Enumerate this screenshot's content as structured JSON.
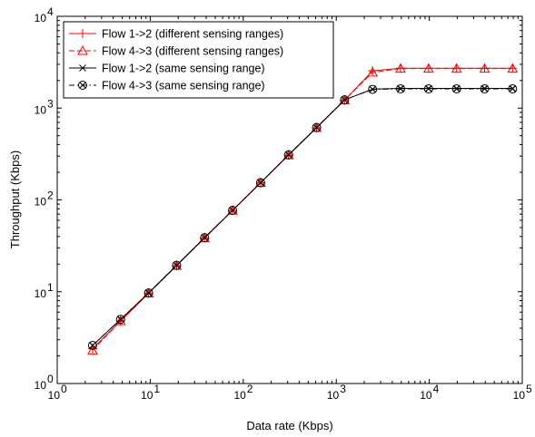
{
  "chart_data": {
    "type": "line",
    "title": "",
    "xlabel": "Data rate (Kbps)",
    "ylabel": "Throughput (Kbps)",
    "xscale": "log",
    "yscale": "log",
    "xlim": [
      1,
      100000
    ],
    "ylim": [
      1,
      10000
    ],
    "x_ticks": [
      {
        "value": 1,
        "base": "10",
        "exp": "0"
      },
      {
        "value": 10,
        "base": "10",
        "exp": "1"
      },
      {
        "value": 100,
        "base": "10",
        "exp": "2"
      },
      {
        "value": 1000,
        "base": "10",
        "exp": "3"
      },
      {
        "value": 10000,
        "base": "10",
        "exp": "4"
      },
      {
        "value": 100000,
        "base": "10",
        "exp": "5"
      }
    ],
    "y_ticks": [
      {
        "value": 1,
        "base": "10",
        "exp": "0"
      },
      {
        "value": 10,
        "base": "10",
        "exp": "1"
      },
      {
        "value": 100,
        "base": "10",
        "exp": "2"
      },
      {
        "value": 1000,
        "base": "10",
        "exp": "3"
      },
      {
        "value": 10000,
        "base": "10",
        "exp": "4"
      }
    ],
    "grid": false,
    "legend_position": "top-left",
    "x": [
      2.4,
      4.8,
      9.6,
      19.2,
      38.4,
      76.8,
      153.6,
      307.2,
      614.4,
      1228.8,
      2457.6,
      4915.2,
      9830.4,
      19660.8,
      39321.6,
      78643.2
    ],
    "series": [
      {
        "name": "Flow 1->2 (different sensing ranges)",
        "color": "#ff0000",
        "dash": "solid",
        "marker": "plus",
        "values": [
          2.4,
          4.8,
          9.6,
          19.2,
          38.4,
          76.8,
          153.6,
          307,
          610,
          1220,
          2550,
          2720,
          2720,
          2720,
          2720,
          2720
        ]
      },
      {
        "name": "Flow 4->3 (different sensing ranges)",
        "color": "#ff0000",
        "dash": "dashed",
        "marker": "triangle",
        "values": [
          2.3,
          4.8,
          9.6,
          19.2,
          38.4,
          76.8,
          153.6,
          307,
          610,
          1220,
          2450,
          2700,
          2700,
          2700,
          2700,
          2700
        ]
      },
      {
        "name": "Flow 1->2 (same sensing range)",
        "color": "#000000",
        "dash": "solid",
        "marker": "x",
        "values": [
          2.6,
          5.0,
          9.7,
          19.4,
          38.8,
          77,
          154,
          310,
          615,
          1230,
          1610,
          1640,
          1640,
          1640,
          1640,
          1640
        ]
      },
      {
        "name": "Flow 4->3 (same sensing range)",
        "color": "#000000",
        "dash": "dashdot",
        "marker": "circle-x",
        "values": [
          2.6,
          5.0,
          9.7,
          19.4,
          38.8,
          77,
          154,
          310,
          615,
          1230,
          1600,
          1620,
          1620,
          1620,
          1620,
          1620
        ]
      }
    ]
  }
}
